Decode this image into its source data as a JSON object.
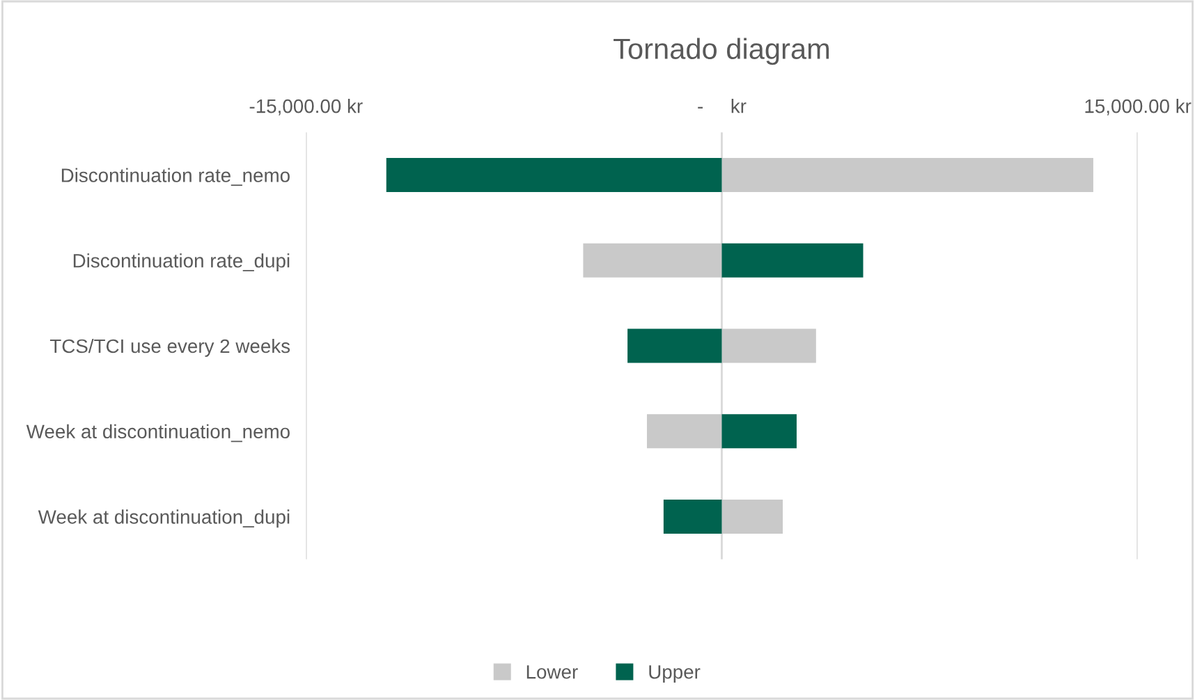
{
  "chart_data": {
    "type": "bar",
    "orientation": "horizontal",
    "stacked": true,
    "title": "Tornado diagram",
    "categories": [
      "Discontinuation rate_nemo",
      "Discontinuation rate_dupi",
      "TCS/TCI use every 2 weeks",
      "Week at discontinuation_nemo",
      "Week at discontinuation_dupi"
    ],
    "series": [
      {
        "name": "Lower",
        "color": "#c9c9c9",
        "values": [
          13400,
          -5000,
          3400,
          -2700,
          2200
        ]
      },
      {
        "name": "Upper",
        "color": "#00634f",
        "values": [
          -12100,
          5100,
          -3400,
          2700,
          -2100
        ]
      }
    ],
    "xlim": [
      -15000,
      15000
    ],
    "xticks": [
      {
        "value": -15000,
        "label": "-15,000.00 kr"
      },
      {
        "value": 0,
        "label": "-     kr"
      },
      {
        "value": 15000,
        "label": "15,000.00 kr"
      }
    ],
    "grid": "x",
    "legend": "bottom"
  }
}
